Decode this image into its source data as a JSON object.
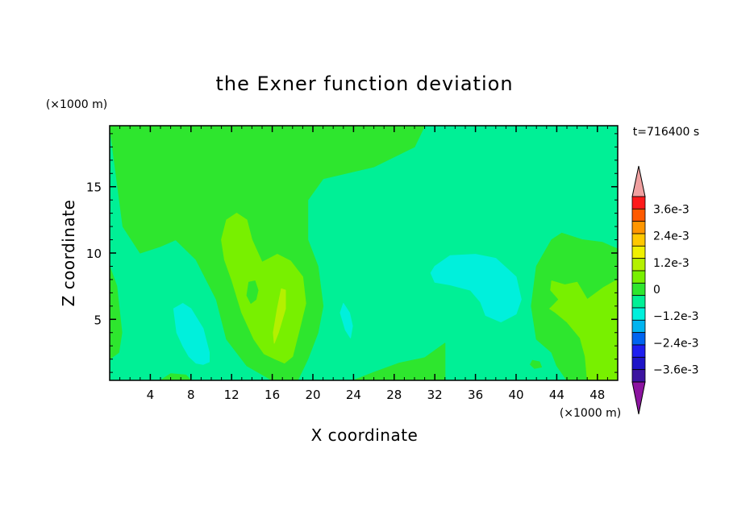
{
  "chart_data": {
    "type": "heatmap",
    "title": "the Exner function deviation",
    "xlabel": "X coordinate",
    "ylabel": "Z coordinate",
    "x_unit": "(×1000 m)",
    "z_unit": "(×1000 m)",
    "time_label": "t=716400 s",
    "xlim": [
      0,
      50
    ],
    "ylim": [
      0.4,
      19.6
    ],
    "x_ticks": [
      4,
      8,
      12,
      16,
      20,
      24,
      28,
      32,
      36,
      40,
      44,
      48
    ],
    "y_ticks": [
      5,
      10,
      15
    ],
    "colorbar": {
      "levels": [
        -0.0036,
        -0.003,
        -0.0024,
        -0.0018,
        -0.0012,
        -0.0006,
        0,
        0.0006,
        0.0012,
        0.0018,
        0.0024,
        0.003,
        0.0036
      ],
      "labels": [
        {
          "value": 0.0036,
          "text": "3.6e-3"
        },
        {
          "value": 0.0024,
          "text": "2.4e-3"
        },
        {
          "value": 0.0012,
          "text": "1.2e-3"
        },
        {
          "value": 0,
          "text": "0"
        },
        {
          "value": -0.0012,
          "text": "−1.2e-3"
        },
        {
          "value": -0.0024,
          "text": "−2.4e-3"
        },
        {
          "value": -0.0036,
          "text": "−3.6e-3"
        }
      ],
      "colors_high_to_low": [
        "#f0a0a0",
        "#ff1a1a",
        "#ff5a00",
        "#ff9600",
        "#ffc800",
        "#f0f000",
        "#b4f000",
        "#78f000",
        "#2ee62e",
        "#00f096",
        "#00f0dc",
        "#00b4f0",
        "#0064f0",
        "#1e1ef0",
        "#1e14c8",
        "#3c14a0",
        "#8c14a0"
      ]
    },
    "regions": [
      {
        "name": "background",
        "level": "-0.6e-3 to 0",
        "color": "#00f096"
      },
      {
        "name": "upper-left-lobe",
        "level": "0 to 0.6e-3",
        "color": "#2ee62e",
        "x": [
          0,
          2,
          10,
          20,
          27,
          31,
          30,
          26,
          21,
          19.5,
          19.5,
          20.5,
          21,
          20.5,
          19.5,
          18.5,
          17.5,
          16,
          13.5,
          11.5,
          10.5,
          8.5,
          6.5,
          5,
          3,
          1.3,
          0
        ],
        "y": [
          19.6,
          19.6,
          19.6,
          19.6,
          19.6,
          19.6,
          18,
          16.5,
          15.6,
          14,
          11,
          9,
          6,
          4,
          2,
          0.4,
          0.4,
          0.4,
          1.5,
          3.5,
          6.5,
          9.5,
          11,
          10.5,
          10,
          12,
          19.6
        ]
      },
      {
        "name": "left-edge-strip",
        "level": "0 to 0.6e-3",
        "color": "#2ee62e",
        "x": [
          0,
          0.7,
          1.2,
          0.9,
          0
        ],
        "y": [
          9,
          7.5,
          4,
          2.5,
          2
        ]
      },
      {
        "name": "bottom-center-bump",
        "level": "0 to 0.6e-3",
        "color": "#2ee62e",
        "x": [
          24,
          26,
          28.5,
          31,
          33,
          33,
          31.5,
          29,
          27,
          25,
          24
        ],
        "y": [
          0.4,
          1,
          1.7,
          2.1,
          3.2,
          0.4,
          0.4,
          0.4,
          0.4,
          0.4,
          0.4
        ]
      },
      {
        "name": "bottom-small-strip",
        "level": "0 to 0.6e-3",
        "color": "#2ee62e",
        "x": [
          5,
          6,
          7.5,
          8,
          7,
          5
        ],
        "y": [
          0.4,
          0.9,
          0.8,
          0.4,
          0.4,
          0.4
        ]
      },
      {
        "name": "right-lobe",
        "level": "0 to 0.6e-3",
        "color": "#2ee62e",
        "x": [
          44.5,
          46.5,
          48.5,
          50,
          50,
          49,
          47,
          45,
          44,
          43.5,
          42,
          41.5,
          42,
          43.5
        ],
        "y": [
          11.5,
          11,
          10.8,
          10.3,
          0.4,
          0.4,
          0.4,
          0.4,
          1.5,
          2.5,
          3.5,
          6,
          9,
          11
        ]
      },
      {
        "name": "left-cyan-patch",
        "level": "-0.6e-3 to -1.2e-3",
        "color": "#00f0dc",
        "x": [
          6.3,
          7.2,
          8,
          9.2,
          9.8,
          9.8,
          9.2,
          8.5,
          7.8,
          7.2,
          6.6,
          6.3
        ],
        "y": [
          5.8,
          6.2,
          5.8,
          4.3,
          2.5,
          1.8,
          1.6,
          1.7,
          2.2,
          3,
          4,
          5.8
        ]
      },
      {
        "name": "small-cyan-blob",
        "level": "-0.6e-3 to -1.2e-3",
        "color": "#00f0dc",
        "x": [
          23,
          23.6,
          23.9,
          23.7,
          23.2,
          22.7,
          23
        ],
        "y": [
          6.2,
          5.5,
          4.5,
          3.6,
          4.2,
          5.5,
          6.2
        ]
      },
      {
        "name": "right-cyan-patch",
        "level": "-0.6e-3 to -1.2e-3",
        "color": "#00f0dc",
        "x": [
          32,
          33.5,
          36,
          38,
          40,
          40.5,
          40,
          38.5,
          37,
          36.5,
          35.5,
          33.5,
          32,
          31.6
        ],
        "y": [
          9,
          9.8,
          9.9,
          9.6,
          8.2,
          6.5,
          5.4,
          4.8,
          5.3,
          6.3,
          7.2,
          7.6,
          7.8,
          8.5
        ]
      },
      {
        "name": "central-yellowgreen-lobe",
        "level": "0.6e-3 to 1.2e-3",
        "color": "#78f000",
        "x": [
          11.5,
          12.5,
          13.5,
          14,
          15,
          16.5,
          17.8,
          19,
          19.3,
          18.7,
          18,
          17.2,
          16.3,
          15.2,
          14.2,
          13,
          12,
          11.3,
          11
        ],
        "y": [
          12.5,
          13,
          12.5,
          11,
          9.3,
          9.9,
          9.4,
          8.2,
          6.2,
          4.3,
          2.2,
          1.7,
          2,
          2.4,
          3.5,
          5.5,
          8,
          9.5,
          11
        ]
      },
      {
        "name": "small-green-dot",
        "level": "0 to 0.6e-3",
        "color": "#2ee62e",
        "x": [
          13.7,
          14.3,
          14.6,
          14.4,
          13.9,
          13.5,
          13.7
        ],
        "y": [
          7.8,
          7.9,
          7.2,
          6.5,
          6.2,
          6.8,
          7.8
        ]
      },
      {
        "name": "yellow-streak",
        "level": "1.2e-3 to 1.8e-3",
        "color": "#b4f000",
        "x": [
          16.9,
          17.3,
          17.3,
          16.6,
          16.2,
          16.1,
          16.5
        ],
        "y": [
          7.3,
          7.2,
          5.8,
          4,
          3.2,
          4,
          5.8
        ]
      },
      {
        "name": "right-yellowgreen-lobe",
        "level": "0.6e-3 to 1.2e-3",
        "color": "#78f000",
        "x": [
          43.5,
          44.8,
          46,
          47,
          48.6,
          50,
          50,
          48.3,
          47,
          46.8,
          46.3,
          45,
          43.9,
          43.3,
          43.7,
          44.2,
          43.4
        ],
        "y": [
          7.9,
          7.6,
          7.8,
          6.5,
          7.4,
          8,
          0.4,
          0.4,
          0.5,
          2.2,
          3.6,
          4.8,
          5.5,
          5.8,
          6.1,
          6.5,
          7.2
        ]
      },
      {
        "name": "small-right-blob",
        "level": "0 to 0.6e-3",
        "color": "#2ee62e",
        "x": [
          41.6,
          42.3,
          42.5,
          41.8,
          41.4,
          41.6
        ],
        "y": [
          1.9,
          1.8,
          1.4,
          1.3,
          1.6,
          1.9
        ]
      }
    ]
  }
}
